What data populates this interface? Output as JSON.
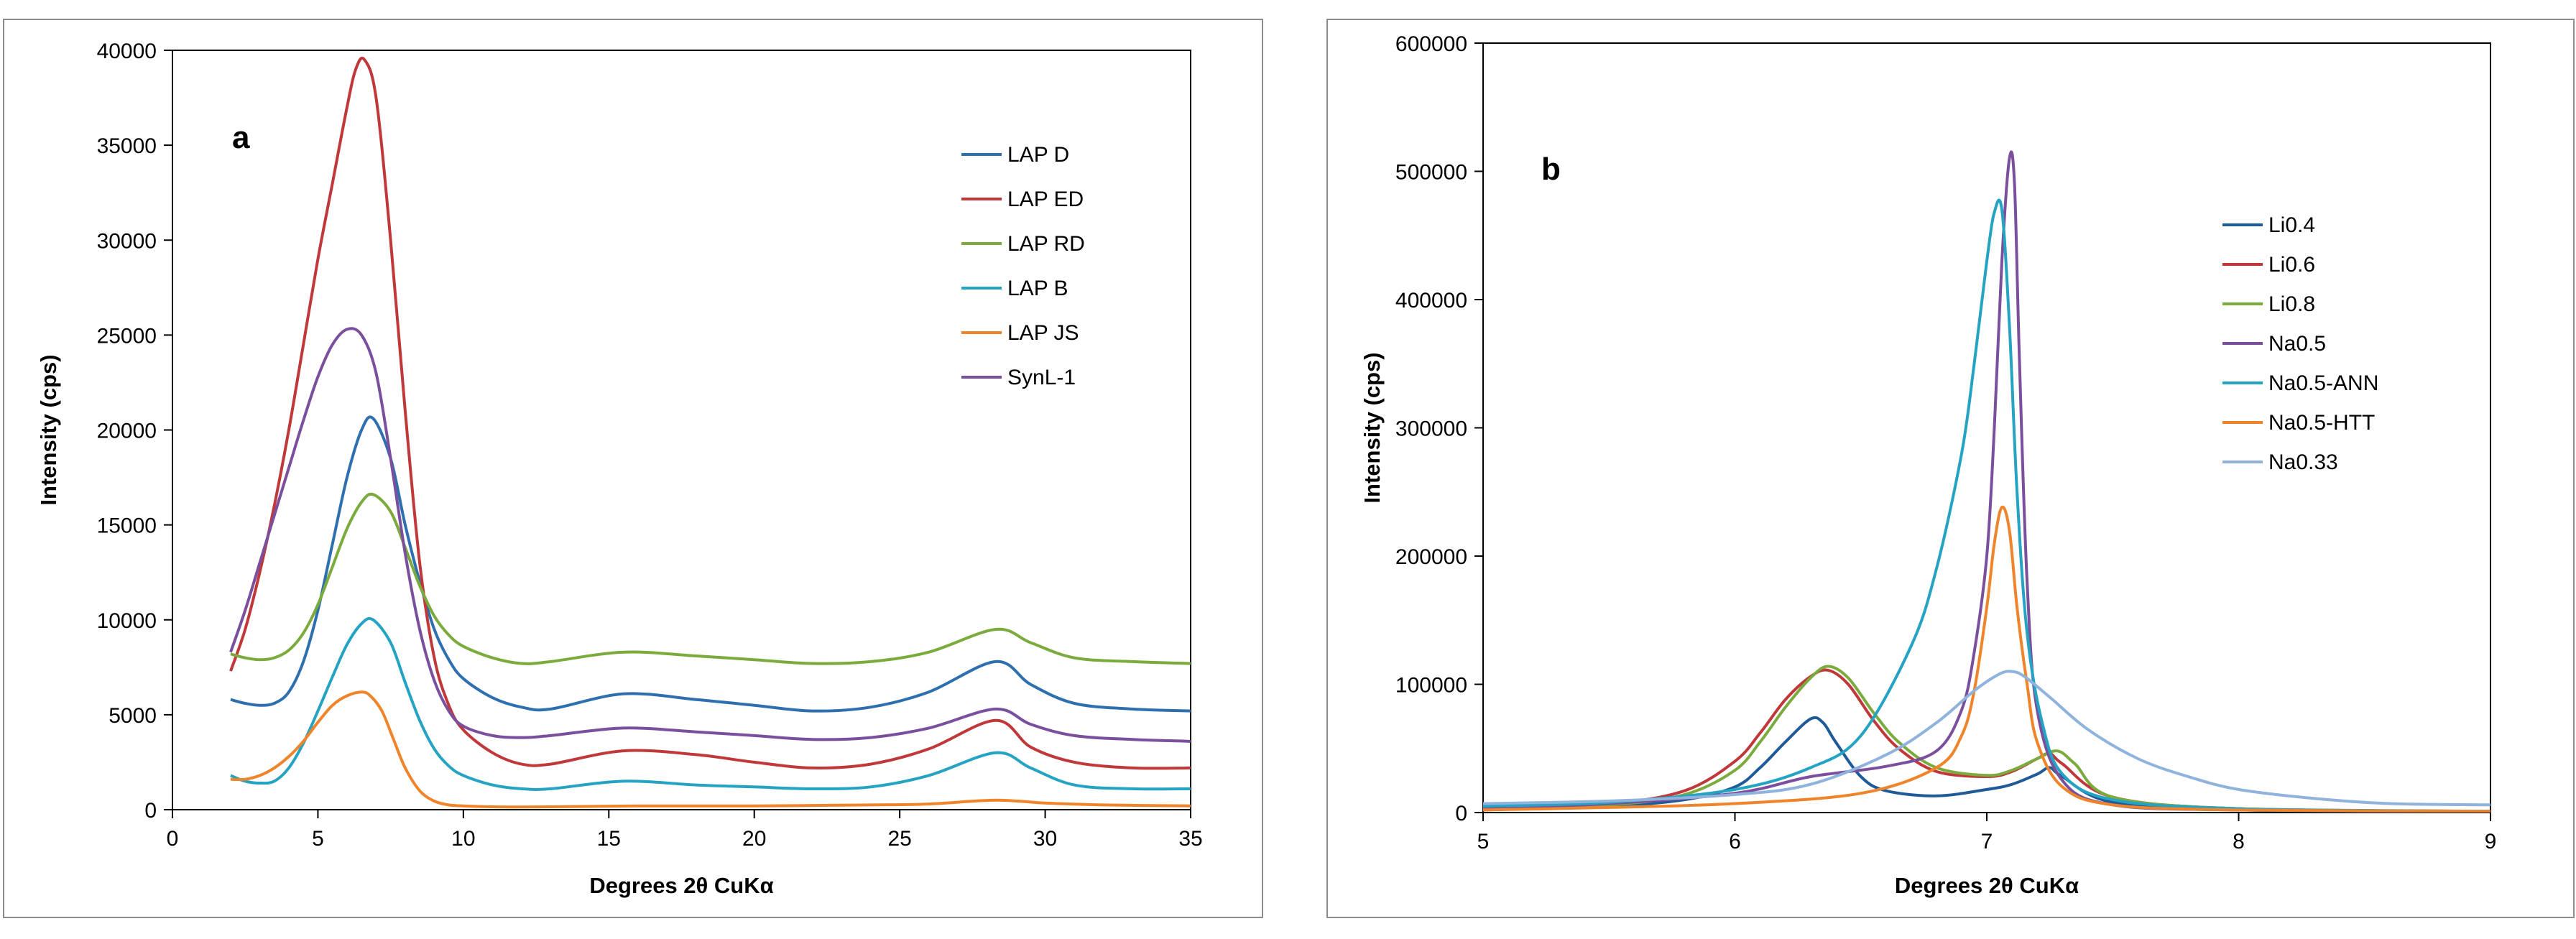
{
  "chart_data": [
    {
      "type": "line",
      "panel_label": "a",
      "xlabel": "Degrees 2θ CuKα",
      "ylabel": "Intensity (cps)",
      "xlim": [
        0,
        35
      ],
      "ylim": [
        0,
        40000
      ],
      "xticks": [
        0,
        5,
        10,
        15,
        20,
        25,
        30,
        35
      ],
      "yticks": [
        0,
        5000,
        10000,
        15000,
        20000,
        25000,
        30000,
        35000,
        40000
      ],
      "legend_position": "top-right",
      "series": [
        {
          "name": "LAP D",
          "color": "#2e6fb0",
          "x": [
            2,
            2.5,
            3,
            3.5,
            4,
            4.5,
            5,
            5.5,
            6,
            6.5,
            6.9,
            7.5,
            8,
            8.5,
            9,
            9.5,
            10,
            11,
            12,
            13,
            15.5,
            18,
            20,
            22,
            24,
            26,
            28.3,
            29.5,
            31,
            33,
            35
          ],
          "y": [
            5800,
            5600,
            5500,
            5600,
            6200,
            7800,
            10500,
            14000,
            17500,
            20000,
            20600,
            18500,
            15000,
            12000,
            9500,
            7900,
            6900,
            5900,
            5400,
            5300,
            6100,
            5800,
            5500,
            5200,
            5400,
            6200,
            7800,
            6600,
            5600,
            5300,
            5200
          ]
        },
        {
          "name": "LAP ED",
          "color": "#c0383a",
          "x": [
            2,
            2.5,
            3,
            3.5,
            4,
            4.5,
            5,
            5.5,
            6,
            6.3,
            6.6,
            7,
            7.5,
            8,
            8.5,
            9,
            9.5,
            10,
            11,
            12,
            13,
            15.5,
            18,
            20,
            22,
            24,
            26,
            28.3,
            29.5,
            31,
            33,
            35
          ],
          "y": [
            7300,
            9500,
            12500,
            16000,
            20000,
            24500,
            29000,
            33000,
            37000,
            39000,
            39500,
            37500,
            30000,
            21000,
            13000,
            8000,
            5500,
            4200,
            3000,
            2400,
            2400,
            3100,
            2900,
            2500,
            2200,
            2400,
            3200,
            4700,
            3300,
            2500,
            2200,
            2200
          ]
        },
        {
          "name": "LAP RD",
          "color": "#7aab3c",
          "x": [
            2,
            2.5,
            3,
            3.5,
            4,
            4.5,
            5,
            5.5,
            6,
            6.5,
            6.9,
            7.5,
            8,
            8.5,
            9,
            9.5,
            10,
            11,
            12,
            13,
            15.5,
            18,
            20,
            22,
            24,
            26,
            28.3,
            29.5,
            31,
            33,
            35
          ],
          "y": [
            8200,
            8000,
            7900,
            8000,
            8400,
            9300,
            10800,
            12800,
            14800,
            16200,
            16600,
            15700,
            13800,
            11800,
            10200,
            9200,
            8600,
            8000,
            7700,
            7800,
            8300,
            8100,
            7900,
            7700,
            7800,
            8300,
            9500,
            8800,
            8000,
            7800,
            7700
          ]
        },
        {
          "name": "LAP B",
          "color": "#25a3c2",
          "x": [
            2,
            2.5,
            3,
            3.5,
            4,
            4.5,
            5,
            5.5,
            6,
            6.5,
            6.9,
            7.5,
            8,
            8.5,
            9,
            9.5,
            10,
            11,
            12,
            13,
            15.5,
            18,
            20,
            22,
            24,
            26,
            28.3,
            29.5,
            31,
            33,
            35
          ],
          "y": [
            1800,
            1500,
            1400,
            1500,
            2200,
            3500,
            5200,
            7000,
            8700,
            9800,
            10000,
            8800,
            6700,
            4700,
            3200,
            2300,
            1800,
            1300,
            1100,
            1100,
            1500,
            1300,
            1200,
            1100,
            1200,
            1800,
            3000,
            2200,
            1300,
            1100,
            1100
          ]
        },
        {
          "name": "LAP JS",
          "color": "#f0842a",
          "x": [
            2,
            2.5,
            3,
            3.5,
            4,
            4.5,
            5,
            5.5,
            6,
            6.5,
            6.8,
            7.2,
            7.6,
            8,
            8.5,
            9,
            9.5,
            10,
            11,
            13,
            16,
            20,
            24,
            26,
            28.3,
            30,
            32,
            35
          ],
          "y": [
            1600,
            1600,
            1800,
            2200,
            2800,
            3600,
            4600,
            5500,
            6000,
            6200,
            6000,
            5200,
            3700,
            2200,
            1000,
            450,
            250,
            200,
            150,
            150,
            200,
            200,
            250,
            300,
            500,
            350,
            250,
            200
          ]
        },
        {
          "name": "SynL-1",
          "color": "#7a4f9e",
          "x": [
            2,
            2.5,
            3,
            3.5,
            4,
            4.5,
            5,
            5.5,
            6,
            6.5,
            7,
            7.5,
            8,
            8.5,
            9,
            9.5,
            10,
            11,
            12,
            13,
            15.5,
            18,
            20,
            22,
            24,
            26,
            28.3,
            29.5,
            31,
            33,
            35
          ],
          "y": [
            8300,
            10500,
            13000,
            15500,
            18000,
            20500,
            22800,
            24500,
            25300,
            25000,
            23000,
            18500,
            13500,
            9500,
            6800,
            5200,
            4400,
            3900,
            3800,
            3900,
            4300,
            4100,
            3900,
            3700,
            3800,
            4300,
            5300,
            4500,
            3900,
            3700,
            3600
          ]
        }
      ]
    },
    {
      "type": "line",
      "panel_label": "b",
      "xlabel": "Degrees 2θ CuKα",
      "ylabel": "Intensity (cps)",
      "xlim": [
        5,
        9
      ],
      "ylim": [
        0,
        600000
      ],
      "xticks": [
        5,
        6,
        7,
        8,
        9
      ],
      "yticks": [
        0,
        100000,
        200000,
        300000,
        400000,
        500000,
        600000
      ],
      "legend_position": "top-right",
      "series": [
        {
          "name": "Li0.4",
          "color": "#1f5a99",
          "x": [
            5,
            5.5,
            5.8,
            6,
            6.1,
            6.2,
            6.3,
            6.35,
            6.4,
            6.5,
            6.6,
            6.8,
            7,
            7.1,
            7.2,
            7.25,
            7.3,
            7.5,
            8,
            9
          ],
          "y": [
            2000,
            5000,
            10000,
            20000,
            35000,
            55000,
            73000,
            70000,
            55000,
            28000,
            17000,
            13000,
            18000,
            22000,
            30000,
            35000,
            28000,
            8000,
            2000,
            1000
          ]
        },
        {
          "name": "Li0.6",
          "color": "#c0383a",
          "x": [
            5,
            5.5,
            5.8,
            6,
            6.1,
            6.2,
            6.3,
            6.37,
            6.45,
            6.55,
            6.65,
            6.8,
            7,
            7.1,
            7.2,
            7.25,
            7.3,
            7.5,
            8,
            9
          ],
          "y": [
            3000,
            7000,
            17000,
            40000,
            62000,
            88000,
            106000,
            111000,
            100000,
            72000,
            50000,
            32000,
            28000,
            32000,
            42000,
            46000,
            38000,
            12000,
            3000,
            1000
          ]
        },
        {
          "name": "Li0.8",
          "color": "#7aab3c",
          "x": [
            5,
            5.5,
            5.8,
            6,
            6.1,
            6.2,
            6.3,
            6.37,
            6.45,
            6.55,
            6.65,
            6.8,
            7,
            7.1,
            7.2,
            7.28,
            7.35,
            7.5,
            8,
            9
          ],
          "y": [
            2500,
            6000,
            14000,
            33000,
            55000,
            82000,
            105000,
            114000,
            105000,
            78000,
            55000,
            35000,
            29000,
            33000,
            42000,
            48000,
            38000,
            12000,
            3000,
            1000
          ]
        },
        {
          "name": "Na0.5",
          "color": "#7a4f9e",
          "x": [
            5,
            5.5,
            6,
            6.3,
            6.6,
            6.8,
            6.9,
            6.95,
            7,
            7.03,
            7.06,
            7.09,
            7.11,
            7.13,
            7.16,
            7.2,
            7.3,
            7.5,
            8,
            9
          ],
          "y": [
            3000,
            7000,
            15000,
            28000,
            36000,
            48000,
            80000,
            125000,
            200000,
            300000,
            430000,
            510000,
            490000,
            350000,
            180000,
            80000,
            25000,
            6000,
            2000,
            1000
          ]
        },
        {
          "name": "Na0.5-ANN",
          "color": "#25a3c2",
          "x": [
            5,
            5.5,
            6,
            6.3,
            6.5,
            6.7,
            6.8,
            6.9,
            6.95,
            7,
            7.03,
            7.06,
            7.09,
            7.12,
            7.16,
            7.22,
            7.3,
            7.5,
            8,
            9
          ],
          "y": [
            5000,
            8000,
            18000,
            35000,
            60000,
            130000,
            190000,
            280000,
            350000,
            430000,
            468000,
            470000,
            380000,
            250000,
            140000,
            70000,
            30000,
            10000,
            3000,
            1000
          ]
        },
        {
          "name": "Na0.5-HTT",
          "color": "#f0842a",
          "x": [
            5,
            5.5,
            6,
            6.5,
            6.8,
            6.9,
            6.95,
            7,
            7.03,
            7.06,
            7.09,
            7.12,
            7.16,
            7.2,
            7.3,
            7.5,
            8,
            9
          ],
          "y": [
            2000,
            4000,
            7000,
            15000,
            35000,
            60000,
            95000,
            160000,
            210000,
            238000,
            220000,
            160000,
            100000,
            55000,
            20000,
            6000,
            2000,
            1000
          ]
        },
        {
          "name": "Na0.33",
          "color": "#8fb3dc",
          "x": [
            5,
            5.5,
            6,
            6.3,
            6.6,
            6.8,
            6.95,
            7.05,
            7.1,
            7.15,
            7.25,
            7.4,
            7.6,
            7.8,
            8,
            8.3,
            8.6,
            9
          ],
          "y": [
            7000,
            9000,
            14000,
            22000,
            45000,
            70000,
            95000,
            108000,
            110000,
            106000,
            90000,
            65000,
            42000,
            28000,
            18000,
            11000,
            7000,
            6000
          ]
        }
      ]
    }
  ]
}
